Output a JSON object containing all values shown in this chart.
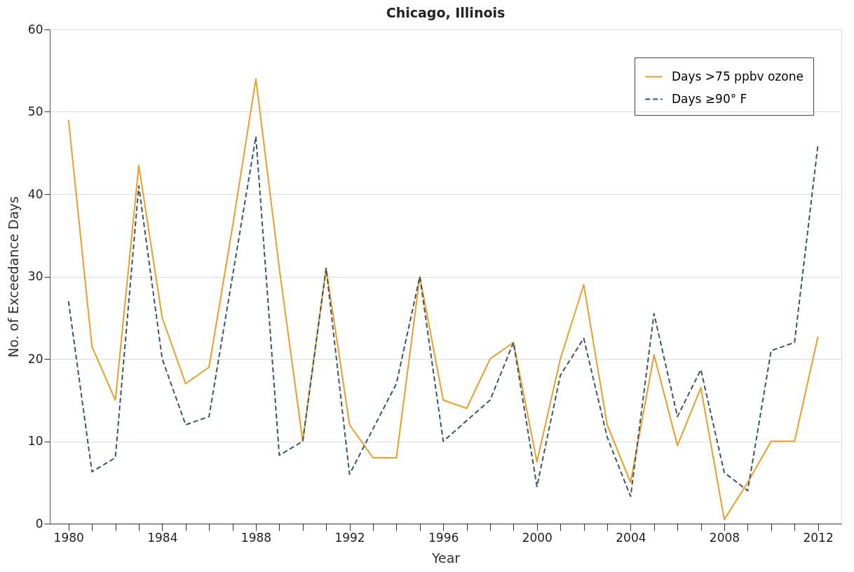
{
  "chart_data": {
    "type": "line",
    "title": "Chicago, Illinois",
    "xlabel": "Year",
    "ylabel": "No. of Exceedance Days",
    "x": [
      1980,
      1981,
      1982,
      1983,
      1984,
      1985,
      1986,
      1987,
      1988,
      1989,
      1990,
      1991,
      1992,
      1993,
      1994,
      1995,
      1996,
      1997,
      1998,
      1999,
      2000,
      2001,
      2002,
      2003,
      2004,
      2005,
      2006,
      2007,
      2008,
      2009,
      2010,
      2011,
      2012
    ],
    "series": [
      {
        "name": "Days >75 ppbv ozone",
        "color": "#e8a02a",
        "line_style": "solid",
        "values": [
          49,
          21.5,
          15,
          43.5,
          25,
          17,
          19,
          36,
          54,
          31,
          10,
          31,
          12,
          8,
          8,
          30,
          15,
          14,
          20,
          22,
          7.5,
          20,
          29,
          12,
          5,
          20.5,
          9.5,
          16.5,
          0.5,
          5,
          10,
          10,
          22.7
        ]
      },
      {
        "name": "Days ≥90° F",
        "color": "#3d5566",
        "line_style": "dashed",
        "values": [
          27,
          6.3,
          8,
          41,
          20,
          12,
          13,
          30,
          47,
          8.3,
          10,
          31,
          6,
          11.5,
          17,
          30,
          10,
          12.5,
          15,
          22,
          4.5,
          18,
          22.5,
          10.5,
          3.3,
          25.5,
          13,
          18.7,
          6.2,
          4,
          21,
          22,
          46
        ]
      }
    ],
    "xlim": [
      1979.2,
      2013
    ],
    "ylim": [
      0,
      60
    ],
    "yticks": [
      0,
      10,
      20,
      30,
      40,
      50,
      60
    ],
    "xticks": [
      1980,
      {
        "value": 1981,
        "label": null
      },
      {
        "value": 1982,
        "label": null
      },
      {
        "value": 1983,
        "label": null
      },
      1984,
      {
        "value": 1985,
        "label": null
      },
      {
        "value": 1986,
        "label": null
      },
      {
        "value": 1987,
        "label": null
      },
      1988,
      {
        "value": 1989,
        "label": null
      },
      {
        "value": 1990,
        "label": null
      },
      {
        "value": 1991,
        "label": null
      },
      1992,
      {
        "value": 1993,
        "label": null
      },
      {
        "value": 1994,
        "label": null
      },
      {
        "value": 1995,
        "label": null
      },
      1996,
      {
        "value": 1997,
        "label": null
      },
      {
        "value": 1998,
        "label": null
      },
      {
        "value": 1999,
        "label": null
      },
      2000,
      {
        "value": 2001,
        "label": null
      },
      {
        "value": 2002,
        "label": null
      },
      {
        "value": 2003,
        "label": null
      },
      2004,
      {
        "value": 2005,
        "label": null
      },
      {
        "value": 2006,
        "label": null
      },
      {
        "value": 2007,
        "label": null
      },
      2008,
      {
        "value": 2009,
        "label": null
      },
      {
        "value": 2010,
        "label": null
      },
      {
        "value": 2011,
        "label": null
      },
      2012
    ],
    "grid": "y",
    "legend": "top right",
    "marker": "none"
  }
}
